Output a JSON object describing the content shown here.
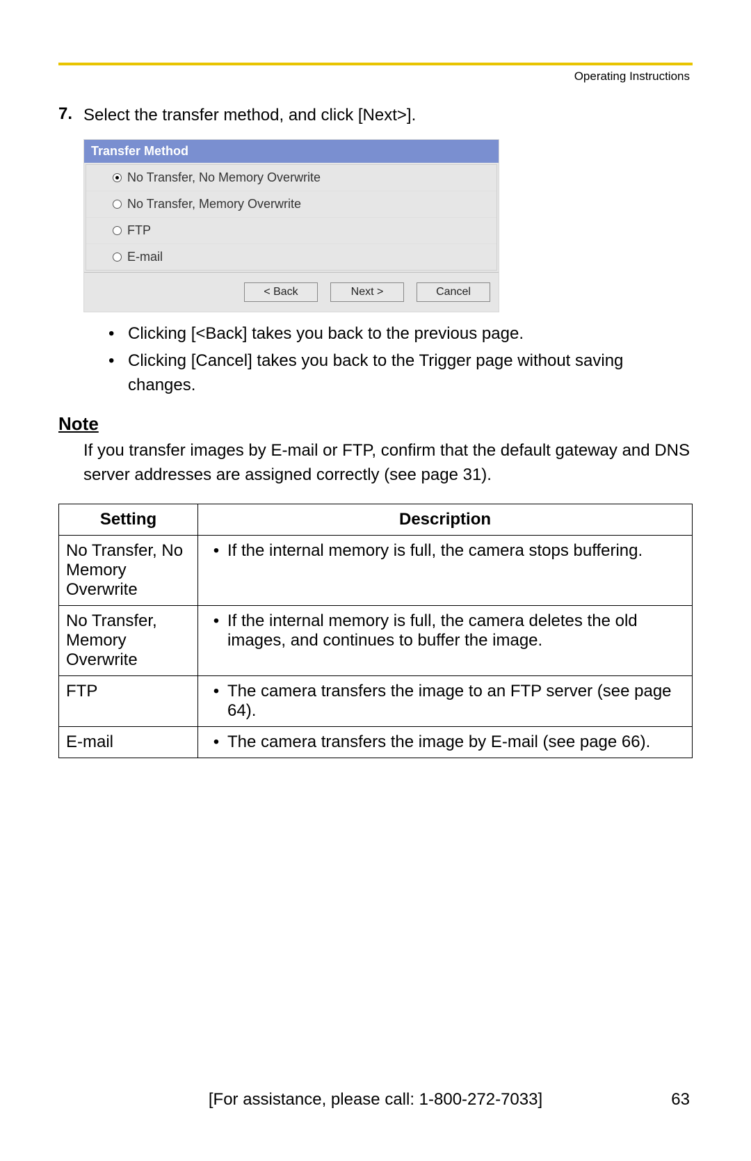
{
  "header": {
    "doc_title": "Operating Instructions"
  },
  "step": {
    "number": "7.",
    "text": "Select the transfer method, and click [Next>]."
  },
  "transfer_method_ui": {
    "title": "Transfer Method",
    "options": [
      {
        "label": "No Transfer, No Memory Overwrite",
        "checked": true
      },
      {
        "label": "No Transfer, Memory Overwrite",
        "checked": false
      },
      {
        "label": "FTP",
        "checked": false
      },
      {
        "label": "E-mail",
        "checked": false
      }
    ],
    "buttons": {
      "back": "< Back",
      "next": "Next >",
      "cancel": "Cancel"
    },
    "colors": {
      "header_bg": "#7a8fd0",
      "header_text": "#ffffff",
      "panel_bg": "#e6e6e6",
      "button_bg": "#e8e8e8",
      "button_border": "#888888",
      "accent_rule": "#e8c400"
    }
  },
  "bullets": [
    "Clicking [<Back] takes you back to the previous page.",
    "Clicking [Cancel] takes you back to the Trigger page without saving changes."
  ],
  "note": {
    "heading": "Note",
    "body": "If you transfer images by E-mail or FTP, confirm that the default gateway and DNS server addresses are assigned correctly (see page 31)."
  },
  "table": {
    "headers": {
      "setting": "Setting",
      "description": "Description"
    },
    "rows": [
      {
        "setting": "No Transfer, No Memory Overwrite",
        "description": "If the internal memory is full, the camera stops buffering."
      },
      {
        "setting": "No Transfer, Memory Overwrite",
        "description": "If the internal memory is full, the camera deletes the old images, and continues to buffer the image."
      },
      {
        "setting": "FTP",
        "description": "The camera transfers the image to an FTP server (see page 64)."
      },
      {
        "setting": "E-mail",
        "description": "The camera transfers the image by E-mail (see page 66)."
      }
    ]
  },
  "footer": {
    "assistance": "[For assistance, please call: 1-800-272-7033]",
    "page": "63"
  }
}
